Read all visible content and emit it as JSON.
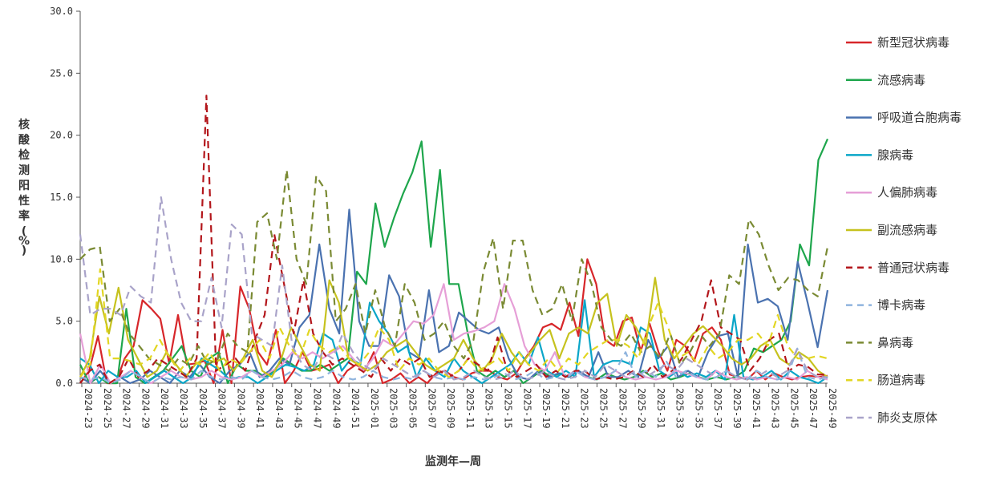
{
  "chart_data": {
    "type": "line",
    "title": "",
    "ylabel": "核酸检测阳性率(%)",
    "xlabel": "监测年—周",
    "ylim": [
      0,
      30
    ],
    "yticks": [
      "0.0",
      "5.0",
      "10.0",
      "15.0",
      "20.0",
      "25.0",
      "30.0"
    ],
    "x_labels": [
      "2024-23",
      "2024-25",
      "2024-27",
      "2024-29",
      "2024-31",
      "2024-33",
      "2024-35",
      "2024-37",
      "2024-39",
      "2024-41",
      "2024-43",
      "2024-45",
      "2024-47",
      "2024-49",
      "2024-51",
      "2025-01",
      "2025-03",
      "2025-05",
      "2025-07",
      "2025-09",
      "2025-11",
      "2025-13",
      "2025-15",
      "2025-17",
      "2025-19",
      "2025-21",
      "2025-23",
      "2025-25",
      "2025-27",
      "2025-29",
      "2025-31",
      "2025-33",
      "2025-35",
      "2025-37",
      "2025-39",
      "2025-41",
      "2025-43",
      "2025-45",
      "2025-47",
      "2025-49"
    ],
    "legend_position": "right",
    "grid": false,
    "series": [
      {
        "name": "新型冠状病毒",
        "color": "#d7262a",
        "dash": "solid",
        "values": [
          0.0,
          1.0,
          3.8,
          0.0,
          0.0,
          2.0,
          3.0,
          6.7,
          6.0,
          5.2,
          1.6,
          5.5,
          1.5,
          1.6,
          1.8,
          0.0,
          4.3,
          0.0,
          7.8,
          6.0,
          2.5,
          1.5,
          4.3,
          0.0,
          1.0,
          2.5,
          1.0,
          1.2,
          1.5,
          0.0,
          1.0,
          1.5,
          1.0,
          2.5,
          0.0,
          0.3,
          0.8,
          0.0,
          0.5,
          0.0,
          0.8,
          1.0,
          0.5,
          0.3,
          0.8,
          1.0,
          1.0,
          0.5,
          0.3,
          0.8,
          2.0,
          3.0,
          4.5,
          4.8,
          4.3,
          6.5,
          3.8,
          10.0,
          8.0,
          3.5,
          3.0,
          5.0,
          5.3,
          2.6,
          4.8,
          2.5,
          1.0,
          3.5,
          3.0,
          1.8,
          4.0,
          4.5,
          3.5,
          0.7,
          0.5,
          0.3,
          1.0,
          0.3,
          0.8,
          0.5,
          0.3,
          0.5,
          0.6,
          0.5,
          0.6
        ]
      },
      {
        "name": "流感病毒",
        "color": "#1ea64c",
        "dash": "solid",
        "values": [
          1.5,
          0.0,
          0.5,
          0.0,
          0.0,
          6.0,
          0.5,
          0.0,
          0.5,
          1.0,
          2.0,
          3.0,
          1.0,
          0.5,
          2.0,
          2.5,
          0.0,
          1.5,
          1.0,
          1.0,
          0.5,
          1.0,
          2.0,
          1.5,
          1.0,
          1.0,
          1.5,
          1.0,
          1.5,
          2.0,
          9.0,
          8.0,
          14.5,
          11.0,
          13.3,
          15.3,
          17.0,
          19.5,
          11.0,
          17.2,
          8.0,
          8.0,
          4.0,
          1.0,
          0.5,
          1.0,
          0.5,
          1.0,
          0.0,
          0.5,
          1.0,
          0.5,
          0.8,
          0.5,
          1.0,
          0.5,
          0.3,
          0.8,
          0.5,
          0.3,
          0.5,
          1.0,
          0.5,
          0.8,
          0.3,
          0.5,
          0.8,
          0.5,
          0.3,
          0.5,
          0.3,
          0.5,
          1.0,
          2.8,
          2.5,
          3.0,
          3.5,
          5.0,
          11.2,
          9.5,
          18.0,
          19.7
        ]
      },
      {
        "name": "呼吸道合胞病毒",
        "color": "#4a72b0",
        "dash": "solid",
        "values": [
          0.5,
          0.0,
          1.0,
          0.0,
          0.5,
          0.0,
          0.3,
          1.0,
          0.5,
          0.0,
          1.0,
          0.5,
          1.5,
          0.5,
          0.0,
          1.0,
          1.5,
          2.5,
          0.5,
          1.0,
          2.0,
          1.5,
          4.5,
          5.5,
          11.2,
          6.0,
          4.0,
          14.0,
          5.0,
          3.0,
          3.0,
          8.7,
          7.0,
          2.5,
          2.0,
          7.5,
          2.5,
          3.0,
          5.7,
          5.0,
          4.3,
          4.0,
          4.5,
          2.0,
          0.5,
          0.3,
          1.0,
          0.5,
          0.8,
          0.5,
          1.0,
          0.5,
          2.5,
          0.5,
          0.5,
          1.0,
          0.5,
          3.5,
          2.0,
          3.0,
          0.5,
          1.0,
          0.5,
          2.5,
          3.8,
          4.0,
          0.5,
          11.2,
          6.5,
          6.8,
          6.2,
          3.5,
          9.8,
          6.5,
          2.9,
          7.5
        ]
      },
      {
        "name": "腺病毒",
        "color": "#0aa6c8",
        "dash": "solid",
        "values": [
          2.0,
          1.5,
          0.0,
          1.0,
          0.5,
          0.5,
          1.0,
          0.0,
          0.5,
          1.0,
          0.5,
          0.0,
          0.5,
          2.0,
          1.5,
          1.0,
          0.3,
          0.5,
          0.5,
          0.0,
          0.5,
          1.0,
          1.5,
          1.3,
          1.0,
          1.5,
          4.0,
          3.5,
          1.0,
          2.0,
          1.5,
          6.5,
          5.0,
          4.0,
          2.5,
          3.0,
          0.5,
          2.0,
          1.0,
          0.5,
          2.0,
          1.0,
          0.5,
          0.0,
          0.5,
          1.0,
          1.5,
          2.5,
          1.5,
          3.7,
          1.0,
          0.5,
          1.0,
          0.5,
          6.7,
          0.5,
          1.5,
          1.8,
          1.8,
          1.5,
          4.5,
          4.0,
          1.0,
          0.5,
          1.0,
          0.5,
          0.8,
          0.5,
          1.0,
          0.3,
          5.5,
          0.5,
          0.3,
          0.5,
          1.0,
          0.3,
          1.0,
          0.5,
          0.3,
          0.0,
          0.5
        ]
      },
      {
        "name": "人偏肺病毒",
        "color": "#e69fd7",
        "dash": "solid",
        "values": [
          4.0,
          0.0,
          1.5,
          0.0,
          0.5,
          1.0,
          0.5,
          0.0,
          0.5,
          1.0,
          0.5,
          0.3,
          0.5,
          1.0,
          0.5,
          0.3,
          0.5,
          1.0,
          0.5,
          1.0,
          1.5,
          2.5,
          2.0,
          2.5,
          2.0,
          2.5,
          3.0,
          2.0,
          1.0,
          2.0,
          3.5,
          3.0,
          4.0,
          5.0,
          4.8,
          5.5,
          8.0,
          3.5,
          4.0,
          4.2,
          4.5,
          5.0,
          8.0,
          6.0,
          3.0,
          1.5,
          1.0,
          2.5,
          0.5,
          1.0,
          0.5,
          0.3,
          0.5,
          1.0,
          0.5,
          0.3,
          0.5,
          0.3,
          0.5,
          1.0,
          0.8,
          0.5,
          0.3,
          1.0,
          0.5,
          0.3,
          0.5,
          0.3,
          0.5,
          0.3,
          0.5,
          0.3,
          1.0,
          0.5,
          0.3
        ]
      },
      {
        "name": "副流感病毒",
        "color": "#c6c21e",
        "dash": "solid",
        "values": [
          0.5,
          2.0,
          7.0,
          4.0,
          7.7,
          3.5,
          2.0,
          0.5,
          1.0,
          2.5,
          1.5,
          0.5,
          1.5,
          2.0,
          1.7,
          2.0,
          1.0,
          2.0,
          3.5,
          1.0,
          0.5,
          2.0,
          4.5,
          3.0,
          1.5,
          1.0,
          8.3,
          6.5,
          2.0,
          1.5,
          1.0,
          1.5,
          2.5,
          3.0,
          3.5,
          2.5,
          1.5,
          1.0,
          1.5,
          2.0,
          3.5,
          2.0,
          1.0,
          2.0,
          4.0,
          2.5,
          1.5,
          2.5,
          3.5,
          4.3,
          2.0,
          4.0,
          4.5,
          4.0,
          6.5,
          7.2,
          3.0,
          5.5,
          4.5,
          3.0,
          8.5,
          3.5,
          2.0,
          3.0,
          4.0,
          4.6,
          3.8,
          3.0,
          2.0,
          1.5,
          2.0,
          3.0,
          3.5,
          2.0,
          1.5,
          2.5,
          2.0,
          1.0,
          0.5
        ]
      },
      {
        "name": "普通冠状病毒",
        "color": "#b3161b",
        "dash": "dashed",
        "values": [
          0.0,
          1.0,
          1.5,
          0.0,
          0.5,
          2.0,
          0.5,
          1.0,
          2.0,
          1.5,
          1.0,
          0.5,
          2.0,
          23.2,
          1.0,
          1.5,
          2.0,
          1.0,
          3.5,
          5.5,
          12.0,
          8.0,
          4.0,
          8.3,
          4.0,
          2.5,
          1.5,
          2.0,
          1.5,
          1.0,
          0.5,
          2.0,
          1.0,
          2.0,
          1.5,
          2.0,
          0.5,
          1.0,
          0.5,
          1.0,
          2.0,
          1.5,
          1.0,
          3.7,
          1.0,
          0.5,
          1.0,
          1.5,
          0.5,
          1.0,
          0.5,
          1.0,
          1.0,
          0.3,
          0.5,
          0.3,
          0.5,
          1.0,
          0.5,
          1.5,
          0.5,
          1.0,
          2.0,
          3.5,
          5.0,
          8.3,
          4.5,
          4.0,
          3.5,
          1.0,
          2.0,
          3.5,
          4.0,
          1.0,
          1.5,
          1.3,
          0.7,
          0.7
        ]
      },
      {
        "name": "博卡病毒",
        "color": "#8fb4de",
        "dash": "dashed",
        "values": [
          0.5,
          0.3,
          0.5,
          0.0,
          0.3,
          1.0,
          0.5,
          0.0,
          0.5,
          0.3,
          0.5,
          0.3,
          1.0,
          0.5,
          0.3,
          0.5,
          0.3,
          1.0,
          0.5,
          0.3,
          0.5,
          1.0,
          0.5,
          0.3,
          0.5,
          1.0,
          0.5,
          0.3,
          0.5,
          1.0,
          0.5,
          0.3,
          0.5,
          0.3,
          1.0,
          0.5,
          0.3,
          0.5,
          0.3,
          0.5,
          0.3,
          0.5,
          0.8,
          0.3,
          0.5,
          1.0,
          0.3,
          0.5,
          0.3,
          1.0,
          0.5,
          0.3,
          0.5,
          1.0,
          2.5,
          0.5,
          1.0,
          0.5,
          1.8,
          0.5,
          1.0,
          0.5,
          0.3,
          0.5,
          1.0,
          0.5,
          0.3,
          1.0,
          0.5,
          0.3,
          0.5,
          2.8,
          0.5,
          0.3,
          0.5
        ]
      },
      {
        "name": "鼻病毒",
        "color": "#7a8a33",
        "dash": "dashed",
        "values": [
          10.0,
          10.8,
          11.0,
          5.0,
          6.0,
          4.0,
          3.0,
          2.0,
          1.5,
          1.0,
          2.0,
          1.5,
          3.0,
          1.5,
          2.0,
          4.0,
          3.0,
          2.5,
          13.0,
          13.7,
          10.0,
          17.2,
          10.0,
          8.0,
          16.7,
          15.5,
          5.0,
          6.0,
          8.0,
          4.0,
          7.5,
          4.5,
          3.0,
          8.0,
          6.5,
          3.5,
          4.0,
          5.0,
          3.0,
          2.0,
          3.5,
          9.0,
          11.7,
          6.0,
          11.5,
          11.5,
          7.5,
          5.5,
          6.0,
          8.0,
          5.0,
          10.0,
          8.0,
          4.5,
          3.5,
          3.0,
          4.0,
          2.5,
          3.0,
          2.0,
          4.0,
          1.5,
          2.5,
          4.0,
          3.0,
          4.0,
          8.7,
          8.0,
          13.2,
          12.0,
          9.5,
          7.5,
          8.5,
          8.3,
          7.5,
          7.0,
          11.0
        ]
      },
      {
        "name": "肠道病毒",
        "color": "#e2d622",
        "dash": "dashed",
        "values": [
          0.5,
          1.5,
          9.2,
          2.0,
          2.0,
          1.8,
          1.5,
          2.0,
          3.5,
          2.0,
          1.0,
          2.0,
          1.5,
          2.5,
          1.0,
          2.0,
          1.5,
          2.5,
          3.5,
          2.0,
          4.5,
          3.0,
          2.0,
          4.3,
          3.0,
          2.5,
          3.0,
          2.0,
          1.5,
          2.5,
          4.5,
          3.5,
          1.0,
          2.0,
          1.5,
          2.0,
          1.0,
          0.5,
          1.0,
          2.0,
          1.0,
          1.5,
          2.0,
          1.0,
          2.5,
          1.5,
          1.0,
          2.0,
          1.0,
          2.0,
          1.5,
          2.5,
          3.0,
          3.5,
          3.5,
          3.0,
          2.0,
          4.5,
          6.5,
          4.5,
          2.0,
          2.5,
          1.5,
          3.0,
          2.0,
          2.5,
          3.5,
          3.5,
          4.0,
          3.0,
          5.5,
          3.0,
          2.0,
          2.0,
          2.2,
          2.0
        ]
      },
      {
        "name": "肺炎支原体",
        "color": "#a9a3c9",
        "dash": "dashed",
        "values": [
          12.0,
          5.5,
          6.0,
          6.0,
          5.5,
          7.8,
          7.0,
          6.5,
          15.0,
          10.0,
          6.5,
          5.0,
          5.0,
          8.5,
          4.5,
          12.8,
          12.0,
          4.0,
          3.5,
          3.0,
          9.5,
          3.0,
          1.5,
          1.0,
          2.5,
          2.0,
          4.0,
          2.5,
          1.5,
          1.0,
          2.0,
          1.5,
          1.0,
          0.5,
          1.0,
          0.5,
          1.0,
          0.3,
          0.5,
          1.0,
          0.5,
          0.3,
          0.5,
          1.0,
          0.3,
          0.5,
          1.0,
          0.5,
          0.3,
          0.5,
          1.0,
          0.5,
          1.5,
          1.0,
          0.5,
          1.0,
          0.5,
          1.0,
          1.5,
          1.0,
          2.0,
          1.5,
          1.0,
          0.5,
          1.0,
          0.5,
          0.3,
          0.5,
          1.0,
          0.5,
          1.0,
          2.8,
          1.0,
          0.5,
          0.5
        ]
      }
    ]
  }
}
